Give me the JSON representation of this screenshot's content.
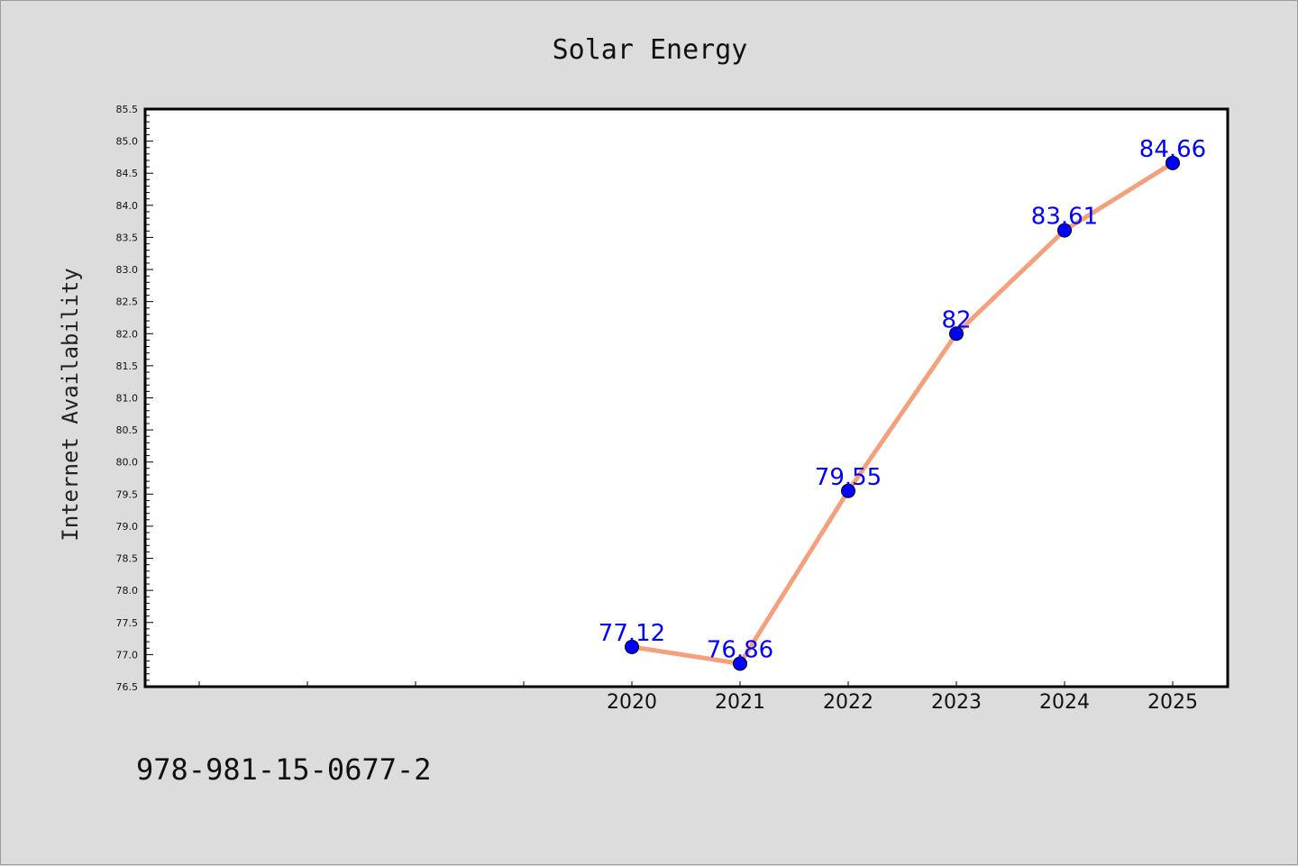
{
  "chart_data": {
    "type": "line",
    "title": "Solar Energy",
    "xlabel": "",
    "ylabel": "Internet Availability",
    "x": [
      "2020",
      "2021",
      "2022",
      "2023",
      "2024",
      "2025"
    ],
    "series": [
      {
        "values": [
          77.12,
          76.86,
          79.55,
          82,
          83.61,
          84.66
        ],
        "labels": [
          "77.12",
          "76.86",
          "79.55",
          "82",
          "83.61",
          "84.66"
        ]
      }
    ],
    "ylim": [
      76.5,
      85.5
    ],
    "yticks": [
      "76.5",
      "77.0",
      "77.5",
      "78.0",
      "78.5",
      "79.0",
      "79.5",
      "80.0",
      "80.5",
      "81.0",
      "81.5",
      "82.0",
      "82.5",
      "83.0",
      "83.5",
      "84.0",
      "84.5",
      "85.0",
      "85.5"
    ],
    "grid": false,
    "line_color": "#f4a07c",
    "marker_color": "#0000ff",
    "label_color": "#0000ff"
  },
  "footer": {
    "isbn": "978-981-15-0677-2"
  }
}
